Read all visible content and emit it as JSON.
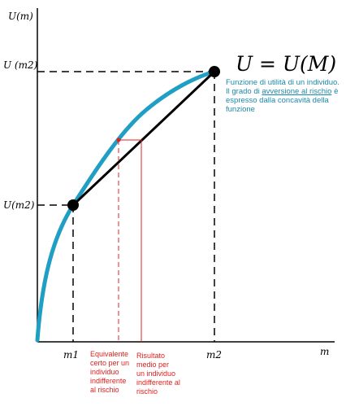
{
  "labels": {
    "y_axis": "U(m)",
    "x_axis": "m",
    "y_upper": "U (m2)",
    "y_lower": "U(m2)",
    "x_m1": "m1",
    "x_m2": "m2",
    "formula": "U = U(M)"
  },
  "annotations": {
    "utility_note_line1": "Funzione di utilità di un individuo.",
    "utility_note_line2_prefix": "Il grado di ",
    "utility_note_line2_link": "avversione al rischio",
    "utility_note_line2_suffix": " è",
    "utility_note_line3": "espresso dalla concavità della funzione",
    "certainty_equivalent": "Equivalente\ncerto per un\nindividuo\nindifferente\nal rischio",
    "average_result": "Risultato\nmedio per\nun individuo\nindifferente al\nrischio"
  },
  "colors": {
    "curve": "#1f9fc4",
    "chord": "#000000",
    "note_text": "#1a8aaa",
    "red_guides": "#e02020",
    "axis": "#000000"
  }
}
